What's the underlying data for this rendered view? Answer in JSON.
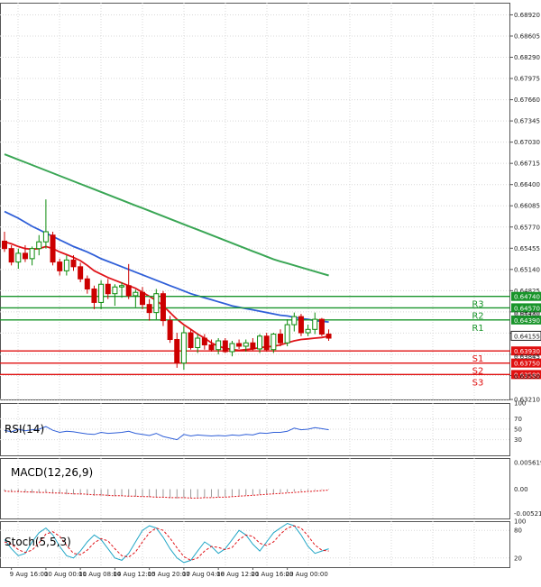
{
  "colors": {
    "bg": "#ffffff",
    "grid": "#d8d8d8",
    "frame": "#555555",
    "candle_up": "#0a8a0a",
    "candle_down": "#cc0000",
    "sma_fast": "#e0141a",
    "sma_mid": "#2f5fd8",
    "sma_slow": "#3aa655",
    "resistance": "#18942a",
    "support": "#e01010",
    "rsi": "#2f5fd8",
    "macd_hist": "#9a9a9a",
    "macd_signal": "#e0141a",
    "stoch_k": "#21a6c6",
    "stoch_d": "#e0141a",
    "price_tag": "#222222"
  },
  "chart_data": [
    {
      "type": "candlestick",
      "name": "main",
      "ylim": [
        0.6321,
        0.691
      ],
      "y_ticks": [
        "0.68920",
        "0.68605",
        "0.68290",
        "0.67975",
        "0.67660",
        "0.67345",
        "0.67030",
        "0.66715",
        "0.66400",
        "0.66085",
        "0.65770",
        "0.65455",
        "0.65140",
        "0.64825",
        "0.64510",
        "0.64195",
        "0.63880",
        "0.63565",
        "0.63210"
      ],
      "y_tick_values": [
        0.6892,
        0.68605,
        0.6829,
        0.67975,
        0.6766,
        0.67345,
        0.6703,
        0.66715,
        0.664,
        0.66085,
        0.6577,
        0.65455,
        0.6514,
        0.64825,
        0.6451,
        0.64195,
        0.6388,
        0.63565,
        0.6321
      ],
      "current_price": 0.64155,
      "current_price_label": "0.64155",
      "levels": [
        {
          "name": "R3",
          "value": 0.6474,
          "label": "0.64740",
          "kind": "resistance"
        },
        {
          "name": "R2",
          "value": 0.6457,
          "label": "0.64570",
          "kind": "resistance"
        },
        {
          "name": "R1",
          "value": 0.6439,
          "label": "0.64390",
          "kind": "resistance"
        },
        {
          "name": "S1",
          "value": 0.6393,
          "label": "0.63930",
          "kind": "support"
        },
        {
          "name": "S2",
          "value": 0.6375,
          "label": "0.63750",
          "kind": "support"
        },
        {
          "name": "S3",
          "value": 0.6358,
          "label": "0.63580",
          "kind": "support"
        }
      ],
      "extra_price_labels": [
        "0.64480",
        "0.63845",
        "0.63550"
      ],
      "extra_price_values": [
        0.6448,
        0.63845,
        0.6355
      ],
      "candles": [
        {
          "o": 0.6556,
          "h": 0.657,
          "l": 0.654,
          "c": 0.6545
        },
        {
          "o": 0.6545,
          "h": 0.655,
          "l": 0.652,
          "c": 0.6525
        },
        {
          "o": 0.6525,
          "h": 0.6545,
          "l": 0.6515,
          "c": 0.6538
        },
        {
          "o": 0.6538,
          "h": 0.655,
          "l": 0.6525,
          "c": 0.653
        },
        {
          "o": 0.653,
          "h": 0.6548,
          "l": 0.652,
          "c": 0.6545
        },
        {
          "o": 0.6545,
          "h": 0.6565,
          "l": 0.6535,
          "c": 0.6555
        },
        {
          "o": 0.6555,
          "h": 0.6618,
          "l": 0.6545,
          "c": 0.657
        },
        {
          "o": 0.6565,
          "h": 0.657,
          "l": 0.652,
          "c": 0.6525
        },
        {
          "o": 0.6525,
          "h": 0.653,
          "l": 0.6505,
          "c": 0.6512
        },
        {
          "o": 0.6512,
          "h": 0.6535,
          "l": 0.6505,
          "c": 0.6528
        },
        {
          "o": 0.6528,
          "h": 0.6535,
          "l": 0.6512,
          "c": 0.6518
        },
        {
          "o": 0.6518,
          "h": 0.6524,
          "l": 0.6495,
          "c": 0.65
        },
        {
          "o": 0.65,
          "h": 0.6505,
          "l": 0.6478,
          "c": 0.6485
        },
        {
          "o": 0.6485,
          "h": 0.649,
          "l": 0.6455,
          "c": 0.6465
        },
        {
          "o": 0.6465,
          "h": 0.6498,
          "l": 0.6455,
          "c": 0.6492
        },
        {
          "o": 0.6492,
          "h": 0.65,
          "l": 0.647,
          "c": 0.6478
        },
        {
          "o": 0.6478,
          "h": 0.6492,
          "l": 0.646,
          "c": 0.6488
        },
        {
          "o": 0.6488,
          "h": 0.6495,
          "l": 0.6472,
          "c": 0.649
        },
        {
          "o": 0.649,
          "h": 0.6522,
          "l": 0.647,
          "c": 0.6475
        },
        {
          "o": 0.6475,
          "h": 0.6484,
          "l": 0.6458,
          "c": 0.648
        },
        {
          "o": 0.648,
          "h": 0.6488,
          "l": 0.6455,
          "c": 0.6462
        },
        {
          "o": 0.6462,
          "h": 0.647,
          "l": 0.6438,
          "c": 0.645
        },
        {
          "o": 0.645,
          "h": 0.6485,
          "l": 0.644,
          "c": 0.6478
        },
        {
          "o": 0.6478,
          "h": 0.6482,
          "l": 0.643,
          "c": 0.6438
        },
        {
          "o": 0.6438,
          "h": 0.6445,
          "l": 0.6405,
          "c": 0.641
        },
        {
          "o": 0.641,
          "h": 0.642,
          "l": 0.6368,
          "c": 0.6375
        },
        {
          "o": 0.6375,
          "h": 0.643,
          "l": 0.6365,
          "c": 0.642
        },
        {
          "o": 0.642,
          "h": 0.6425,
          "l": 0.6395,
          "c": 0.6398
        },
        {
          "o": 0.6398,
          "h": 0.6418,
          "l": 0.639,
          "c": 0.6412
        },
        {
          "o": 0.6412,
          "h": 0.6418,
          "l": 0.6395,
          "c": 0.6402
        },
        {
          "o": 0.6402,
          "h": 0.641,
          "l": 0.6392,
          "c": 0.6395
        },
        {
          "o": 0.6395,
          "h": 0.6412,
          "l": 0.6388,
          "c": 0.6408
        },
        {
          "o": 0.6408,
          "h": 0.6412,
          "l": 0.639,
          "c": 0.6392
        },
        {
          "o": 0.6392,
          "h": 0.6408,
          "l": 0.6385,
          "c": 0.6404
        },
        {
          "o": 0.6404,
          "h": 0.641,
          "l": 0.6396,
          "c": 0.64
        },
        {
          "o": 0.64,
          "h": 0.641,
          "l": 0.6392,
          "c": 0.6405
        },
        {
          "o": 0.6405,
          "h": 0.6412,
          "l": 0.6394,
          "c": 0.6396
        },
        {
          "o": 0.6396,
          "h": 0.6418,
          "l": 0.639,
          "c": 0.6415
        },
        {
          "o": 0.6415,
          "h": 0.642,
          "l": 0.6392,
          "c": 0.6395
        },
        {
          "o": 0.6395,
          "h": 0.642,
          "l": 0.639,
          "c": 0.6418
        },
        {
          "o": 0.6418,
          "h": 0.6425,
          "l": 0.64,
          "c": 0.6405
        },
        {
          "o": 0.6405,
          "h": 0.644,
          "l": 0.64,
          "c": 0.6432
        },
        {
          "o": 0.6432,
          "h": 0.645,
          "l": 0.6422,
          "c": 0.6444
        },
        {
          "o": 0.6444,
          "h": 0.6448,
          "l": 0.6415,
          "c": 0.642
        },
        {
          "o": 0.642,
          "h": 0.6432,
          "l": 0.6415,
          "c": 0.6425
        },
        {
          "o": 0.6425,
          "h": 0.645,
          "l": 0.6418,
          "c": 0.644
        },
        {
          "o": 0.644,
          "h": 0.6442,
          "l": 0.6415,
          "c": 0.6418
        },
        {
          "o": 0.6418,
          "h": 0.6425,
          "l": 0.6408,
          "c": 0.6412
        }
      ],
      "sma_fast": [
        0.6555,
        0.6552,
        0.6548,
        0.6545,
        0.6544,
        0.6545,
        0.6548,
        0.6545,
        0.654,
        0.6536,
        0.6532,
        0.6527,
        0.652,
        0.6512,
        0.6507,
        0.6502,
        0.6498,
        0.6494,
        0.649,
        0.6486,
        0.648,
        0.6474,
        0.6468,
        0.646,
        0.645,
        0.644,
        0.6432,
        0.6425,
        0.6418,
        0.6412,
        0.6405,
        0.64,
        0.6397,
        0.6395,
        0.6394,
        0.6395,
        0.6396,
        0.6398,
        0.6399,
        0.64,
        0.6402,
        0.6405,
        0.6408,
        0.641,
        0.6411,
        0.6412,
        0.6413,
        0.6415
      ],
      "sma_mid": [
        0.66,
        0.6595,
        0.659,
        0.6584,
        0.6578,
        0.6573,
        0.6568,
        0.6563,
        0.6558,
        0.6553,
        0.6548,
        0.6544,
        0.654,
        0.6535,
        0.653,
        0.6526,
        0.6522,
        0.6518,
        0.6514,
        0.651,
        0.6506,
        0.6502,
        0.6498,
        0.6494,
        0.649,
        0.6486,
        0.6482,
        0.6478,
        0.6475,
        0.6472,
        0.6469,
        0.6466,
        0.6463,
        0.646,
        0.6458,
        0.6456,
        0.6454,
        0.6452,
        0.645,
        0.6448,
        0.6446,
        0.6445,
        0.6443,
        0.6441,
        0.644,
        0.6438,
        0.6437,
        0.6436
      ],
      "sma_slow": [
        0.6685,
        0.6681,
        0.6677,
        0.6673,
        0.6669,
        0.6665,
        0.6661,
        0.6657,
        0.6653,
        0.6649,
        0.6645,
        0.6641,
        0.6637,
        0.6633,
        0.6629,
        0.6625,
        0.6621,
        0.6617,
        0.6613,
        0.6609,
        0.6605,
        0.6601,
        0.6597,
        0.6593,
        0.6589,
        0.6585,
        0.6581,
        0.6577,
        0.6573,
        0.6569,
        0.6565,
        0.6561,
        0.6557,
        0.6553,
        0.6549,
        0.6545,
        0.6541,
        0.6537,
        0.6533,
        0.6529,
        0.6526,
        0.6523,
        0.652,
        0.6517,
        0.6514,
        0.6511,
        0.6508,
        0.6505
      ],
      "x_labels": [
        "9 Aug 16:00",
        "10 Aug 00:00",
        "11 Aug 08:00",
        "14 Aug 12:00",
        "15 Aug 20:00",
        "17 Aug 04:00",
        "18 Aug 12:00",
        "21 Aug 16:00",
        "23 Aug 00:00"
      ],
      "x_label_bars": [
        1,
        6,
        11,
        16,
        21,
        26,
        31,
        36,
        41
      ]
    },
    {
      "type": "line",
      "name": "rsi",
      "title": "RSI(14)",
      "ylim": [
        0,
        100
      ],
      "y_ticks": [
        "100",
        "70",
        "50",
        "30",
        "0"
      ],
      "y_tick_values": [
        100,
        70,
        50,
        30,
        0
      ],
      "values": [
        48,
        45,
        50,
        47,
        49,
        50,
        55,
        48,
        44,
        46,
        45,
        43,
        41,
        40,
        44,
        42,
        43,
        44,
        46,
        42,
        40,
        38,
        42,
        36,
        33,
        30,
        40,
        37,
        39,
        38,
        37,
        38,
        37,
        39,
        38,
        40,
        39,
        43,
        42,
        44,
        44,
        46,
        52,
        49,
        50,
        53,
        51,
        49
      ]
    },
    {
      "type": "bar",
      "name": "macd",
      "title": "MACD(12,26,9)",
      "ylim": [
        -0.00623,
        0.00661
      ],
      "y_ticks": [
        "0.005619",
        "0.00",
        "-0.005216"
      ],
      "y_tick_values": [
        0.005619,
        0.0,
        -0.005216
      ],
      "histogram": [
        -0.0004,
        -0.0005,
        -0.0006,
        -0.0007,
        -0.0008,
        -0.0008,
        -0.0007,
        -0.0009,
        -0.001,
        -0.0011,
        -0.0011,
        -0.0012,
        -0.0013,
        -0.0014,
        -0.0014,
        -0.0015,
        -0.0015,
        -0.0015,
        -0.0015,
        -0.0016,
        -0.0016,
        -0.0017,
        -0.0017,
        -0.0018,
        -0.0019,
        -0.002,
        -0.0019,
        -0.0019,
        -0.0018,
        -0.0018,
        -0.0017,
        -0.0017,
        -0.0016,
        -0.0015,
        -0.0014,
        -0.0013,
        -0.0012,
        -0.0011,
        -0.001,
        -0.0009,
        -0.0008,
        -0.0007,
        -0.0005,
        -0.0004,
        -0.0003,
        -0.0002,
        -0.0001,
        -0.0001
      ],
      "signal": [
        -0.0004,
        -0.0005,
        -0.0005,
        -0.0006,
        -0.0006,
        -0.0007,
        -0.0007,
        -0.0008,
        -0.0008,
        -0.0009,
        -0.001,
        -0.001,
        -0.0011,
        -0.0012,
        -0.0012,
        -0.0013,
        -0.0014,
        -0.0014,
        -0.0015,
        -0.0015,
        -0.0016,
        -0.0016,
        -0.0017,
        -0.0017,
        -0.0018,
        -0.0018,
        -0.0018,
        -0.0019,
        -0.0019,
        -0.0018,
        -0.0018,
        -0.0017,
        -0.0017,
        -0.0016,
        -0.0015,
        -0.0014,
        -0.0013,
        -0.0012,
        -0.0011,
        -0.001,
        -0.0009,
        -0.0008,
        -0.0007,
        -0.0006,
        -0.0005,
        -0.0004,
        -0.0003,
        -0.0002
      ]
    },
    {
      "type": "line",
      "name": "stoch",
      "title": "Stoch(5,5,3)",
      "ylim": [
        0,
        100
      ],
      "y_ticks": [
        "100",
        "80",
        "20",
        "0"
      ],
      "y_tick_values": [
        100,
        80,
        20,
        0
      ],
      "k": [
        60,
        40,
        25,
        30,
        55,
        75,
        85,
        70,
        45,
        25,
        20,
        35,
        55,
        70,
        60,
        40,
        20,
        15,
        30,
        55,
        80,
        90,
        85,
        65,
        40,
        20,
        10,
        15,
        35,
        55,
        45,
        30,
        40,
        60,
        80,
        70,
        50,
        35,
        55,
        75,
        85,
        95,
        90,
        70,
        45,
        30,
        35,
        40
      ],
      "d": [
        55,
        50,
        38,
        32,
        37,
        53,
        72,
        77,
        67,
        47,
        30,
        27,
        37,
        53,
        62,
        57,
        40,
        25,
        22,
        33,
        55,
        75,
        85,
        80,
        63,
        42,
        23,
        15,
        20,
        35,
        45,
        43,
        38,
        43,
        60,
        70,
        67,
        52,
        47,
        55,
        72,
        85,
        90,
        85,
        68,
        48,
        37,
        35
      ]
    }
  ]
}
